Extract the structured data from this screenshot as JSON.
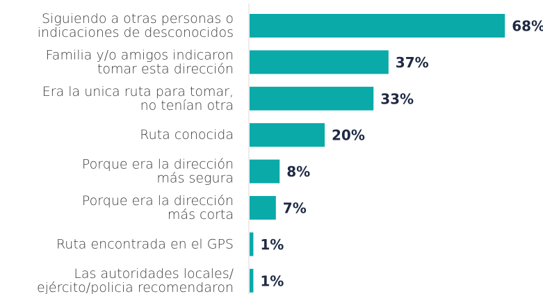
{
  "chart_data": {
    "type": "bar",
    "orientation": "horizontal",
    "categories": [
      "Siguiendo a otras personas o\nindicaciones de desconocidos",
      "Familia y/o amigos indicaron\ntomar esta dirección",
      "Era la unica ruta para tomar,\nno tenían otra",
      "Ruta conocida",
      "Porque era la dirección\nmás segura",
      "Porque era la dirección\nmás corta",
      "Ruta encontrada en el GPS",
      "Las autoridades locales/\nejército/policia recomendaron"
    ],
    "values": [
      68,
      37,
      33,
      20,
      8,
      7,
      1,
      1
    ],
    "value_labels": [
      "68%",
      "37%",
      "33%",
      "20%",
      "8%",
      "7%",
      "1%",
      "1%"
    ],
    "color": "#0aaaa9"
  }
}
